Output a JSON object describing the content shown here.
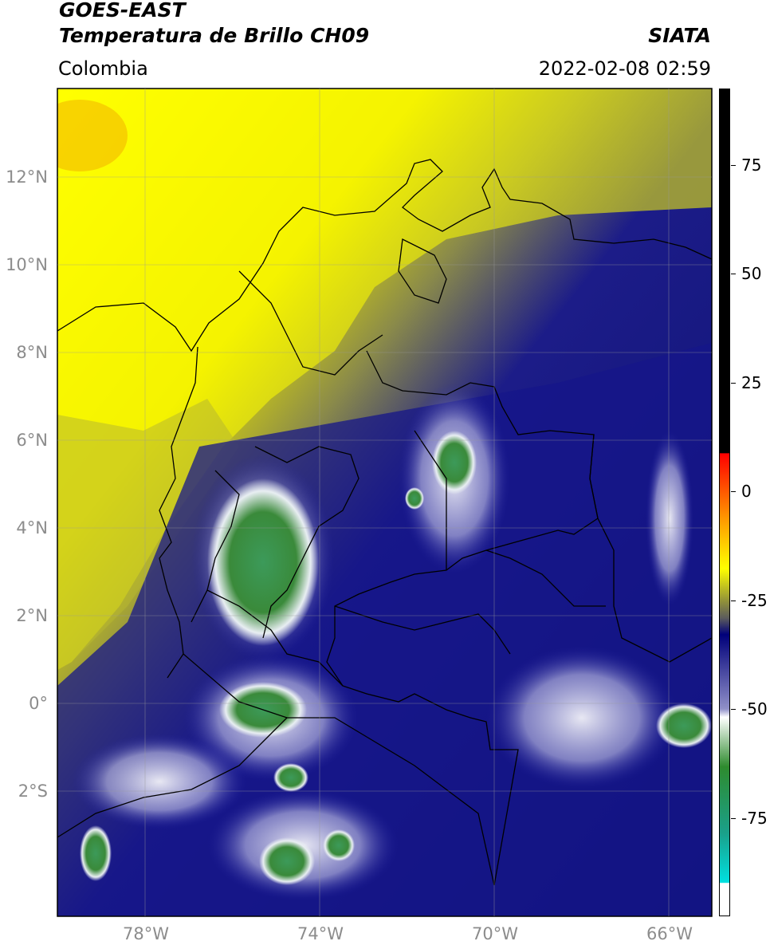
{
  "header": {
    "title_line1": "GOES-EAST",
    "title_line2": "Temperatura de Brillo CH09",
    "brand": "SIATA",
    "region": "Colombia",
    "datetime": "2022-02-08 02:59"
  },
  "axes": {
    "lat_labels": [
      {
        "text": "12°N",
        "lat": 12
      },
      {
        "text": "10°N",
        "lat": 10
      },
      {
        "text": "8°N",
        "lat": 8
      },
      {
        "text": "6°N",
        "lat": 6
      },
      {
        "text": "4°N",
        "lat": 4
      },
      {
        "text": "2°N",
        "lat": 2
      },
      {
        "text": "0°",
        "lat": 0
      },
      {
        "text": "2°S",
        "lat": -2
      }
    ],
    "lon_labels": [
      {
        "text": "78°W",
        "lon": -78
      },
      {
        "text": "74°W",
        "lon": -74
      },
      {
        "text": "70°W",
        "lon": -70
      },
      {
        "text": "66°W",
        "lon": -66
      }
    ]
  },
  "colorbar": {
    "ticks": [
      {
        "text": "75",
        "value": 75
      },
      {
        "text": "50",
        "value": 50
      },
      {
        "text": "25",
        "value": 25
      },
      {
        "text": "0",
        "value": 0
      },
      {
        "text": "-25",
        "value": -25
      },
      {
        "text": "-50",
        "value": -50
      },
      {
        "text": "-75",
        "value": -75
      }
    ],
    "colors": [
      "#000000",
      "#ff0000",
      "#ff9900",
      "#ffff00",
      "#6b6b4a",
      "#00007a",
      "#ffffff",
      "#2e8b2e",
      "#00d6d6",
      "#ffffff"
    ]
  }
}
